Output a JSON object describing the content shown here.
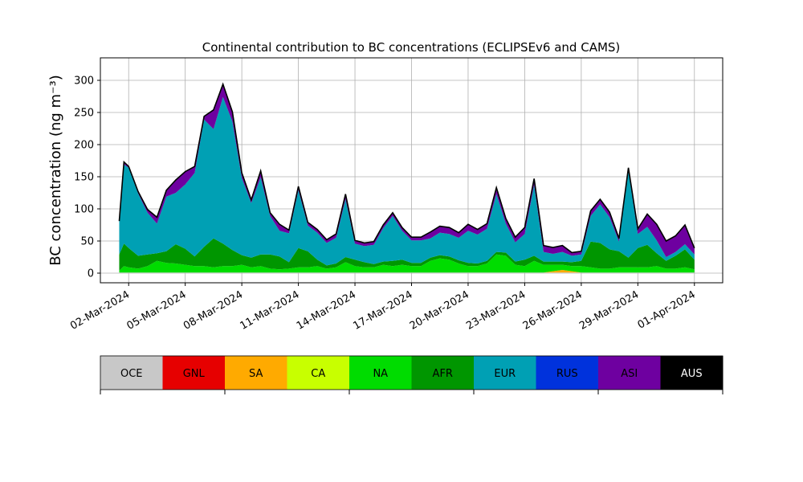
{
  "chart_data": {
    "type": "area",
    "title": "Continental contribution to BC concentrations (ECLIPSEv6 and CAMS)",
    "ylabel": "BC concentration (ng m⁻³)",
    "xlabel": "",
    "ylim": [
      -15,
      335
    ],
    "xlim": [
      "2024-02-29T12:00",
      "2024-04-02T12:00"
    ],
    "yticks": [
      0,
      50,
      100,
      150,
      200,
      250,
      300
    ],
    "xticks": [
      "02-Mar-2024",
      "05-Mar-2024",
      "08-Mar-2024",
      "11-Mar-2024",
      "14-Mar-2024",
      "17-Mar-2024",
      "20-Mar-2024",
      "23-Mar-2024",
      "26-Mar-2024",
      "29-Mar-2024",
      "01-Apr-2024"
    ],
    "grid": true,
    "stacked": true,
    "x": [
      "2024-03-01T12:00",
      "2024-03-01T18:00",
      "2024-03-02T00:00",
      "2024-03-02T12:00",
      "2024-03-03T00:00",
      "2024-03-03T12:00",
      "2024-03-04T00:00",
      "2024-03-04T12:00",
      "2024-03-05T00:00",
      "2024-03-05T12:00",
      "2024-03-06T00:00",
      "2024-03-06T12:00",
      "2024-03-07T00:00",
      "2024-03-07T12:00",
      "2024-03-08T00:00",
      "2024-03-08T12:00",
      "2024-03-09T00:00",
      "2024-03-09T12:00",
      "2024-03-10T00:00",
      "2024-03-10T12:00",
      "2024-03-11T00:00",
      "2024-03-11T12:00",
      "2024-03-12T00:00",
      "2024-03-12T12:00",
      "2024-03-13T00:00",
      "2024-03-13T12:00",
      "2024-03-14T00:00",
      "2024-03-14T12:00",
      "2024-03-15T00:00",
      "2024-03-15T12:00",
      "2024-03-16T00:00",
      "2024-03-16T12:00",
      "2024-03-17T00:00",
      "2024-03-17T12:00",
      "2024-03-18T00:00",
      "2024-03-18T12:00",
      "2024-03-19T00:00",
      "2024-03-19T12:00",
      "2024-03-20T00:00",
      "2024-03-20T12:00",
      "2024-03-21T00:00",
      "2024-03-21T12:00",
      "2024-03-22T00:00",
      "2024-03-22T12:00",
      "2024-03-23T00:00",
      "2024-03-23T12:00",
      "2024-03-24T00:00",
      "2024-03-24T12:00",
      "2024-03-25T00:00",
      "2024-03-25T12:00",
      "2024-03-26T00:00",
      "2024-03-26T12:00",
      "2024-03-27T00:00",
      "2024-03-27T12:00",
      "2024-03-28T00:00",
      "2024-03-28T12:00",
      "2024-03-29T00:00",
      "2024-03-29T12:00",
      "2024-03-30T00:00",
      "2024-03-30T12:00",
      "2024-03-31T00:00",
      "2024-03-31T12:00",
      "2024-04-01T00:00"
    ],
    "series": [
      {
        "name": "OCE",
        "color": "#c8c8c8",
        "values": [
          1,
          1,
          1,
          1,
          1,
          1,
          1,
          1,
          1,
          1,
          1,
          1,
          1,
          1,
          1,
          1,
          1,
          1,
          1,
          1,
          1,
          1,
          1,
          1,
          1,
          1,
          1,
          1,
          1,
          1,
          1,
          1,
          1,
          1,
          1,
          1,
          1,
          1,
          1,
          1,
          1,
          1,
          1,
          1,
          1,
          1,
          1,
          1,
          1,
          1,
          1,
          1,
          1,
          1,
          1,
          1,
          1,
          1,
          1,
          1,
          1,
          1,
          1
        ]
      },
      {
        "name": "GNL",
        "color": "#e60000",
        "values": [
          0,
          0,
          0,
          0,
          0,
          0,
          0,
          0,
          0,
          0,
          0,
          0,
          0,
          0,
          0,
          0,
          0,
          0,
          0,
          0,
          0,
          0,
          0,
          0,
          0,
          0,
          0,
          0,
          0,
          0,
          0,
          0,
          0,
          0,
          0,
          0,
          0,
          0,
          0,
          0,
          0,
          0,
          0,
          0,
          0,
          0,
          0,
          0,
          0,
          0,
          0,
          0,
          0,
          0,
          0,
          0,
          0,
          0,
          0,
          0,
          0,
          0,
          0
        ]
      },
      {
        "name": "SA",
        "color": "#ffaa00",
        "values": [
          0,
          0,
          0,
          0,
          0,
          0,
          0,
          0,
          0,
          0,
          0,
          0,
          0,
          0,
          0,
          0,
          0,
          0,
          0,
          0,
          0,
          0,
          0,
          0,
          0,
          0,
          0,
          0,
          0,
          0,
          0,
          0,
          0,
          0,
          0,
          0,
          0,
          0,
          0,
          0,
          0,
          0,
          0,
          0,
          0,
          0,
          0,
          2,
          4,
          2,
          0,
          0,
          0,
          0,
          0,
          0,
          0,
          0,
          0,
          0,
          0,
          0,
          0
        ]
      },
      {
        "name": "CA",
        "color": "#c8ff00",
        "values": [
          0,
          0,
          0,
          0,
          0,
          0,
          0,
          0,
          0,
          0,
          0,
          0,
          0,
          0,
          0,
          0,
          0,
          0,
          0,
          0,
          0,
          0,
          0,
          0,
          0,
          0,
          0,
          0,
          0,
          0,
          0,
          0,
          0,
          0,
          0,
          0,
          0,
          0,
          0,
          0,
          0,
          0,
          0,
          0,
          0,
          0,
          0,
          0,
          0,
          0,
          0,
          0,
          0,
          0,
          0,
          0,
          0,
          0,
          0,
          0,
          0,
          0,
          0
        ]
      },
      {
        "name": "NA",
        "color": "#00dc00",
        "values": [
          3,
          10,
          8,
          6,
          10,
          18,
          15,
          14,
          12,
          10,
          10,
          8,
          10,
          10,
          12,
          8,
          10,
          6,
          5,
          6,
          8,
          8,
          10,
          6,
          8,
          16,
          10,
          8,
          8,
          12,
          10,
          12,
          10,
          10,
          18,
          22,
          20,
          14,
          10,
          10,
          14,
          28,
          26,
          12,
          10,
          18,
          12,
          10,
          8,
          8,
          10,
          8,
          6,
          6,
          8,
          8,
          8,
          8,
          10,
          6,
          6,
          8,
          5
        ]
      },
      {
        "name": "AFR",
        "color": "#009600",
        "values": [
          25,
          35,
          30,
          20,
          18,
          12,
          18,
          30,
          25,
          15,
          30,
          45,
          35,
          25,
          15,
          15,
          18,
          22,
          20,
          10,
          30,
          25,
          10,
          5,
          6,
          8,
          10,
          8,
          5,
          5,
          8,
          8,
          5,
          5,
          5,
          5,
          5,
          5,
          5,
          4,
          4,
          4,
          5,
          5,
          10,
          8,
          5,
          5,
          5,
          6,
          8,
          40,
          40,
          30,
          25,
          15,
          30,
          35,
          20,
          12,
          20,
          28,
          15
        ]
      },
      {
        "name": "EUR",
        "color": "#00a0b4",
        "values": [
          52,
          123,
          125,
          97,
          65,
          46,
          85,
          80,
          100,
          130,
          198,
          170,
          228,
          200,
          120,
          85,
          120,
          60,
          40,
          45,
          90,
          40,
          42,
          35,
          40,
          90,
          25,
          25,
          30,
          52,
          70,
          45,
          35,
          35,
          30,
          35,
          35,
          35,
          50,
          45,
          50,
          90,
          45,
          30,
          40,
          110,
          15,
          12,
          15,
          10,
          10,
          40,
          60,
          50,
          15,
          135,
          22,
          28,
          20,
          6,
          6,
          8,
          8
        ]
      },
      {
        "name": "RUS",
        "color": "#0032dc",
        "values": [
          0,
          0,
          0,
          0,
          0,
          0,
          0,
          0,
          0,
          0,
          0,
          0,
          0,
          0,
          0,
          0,
          0,
          0,
          0,
          0,
          0,
          0,
          0,
          0,
          0,
          0,
          0,
          0,
          0,
          0,
          0,
          0,
          0,
          0,
          0,
          0,
          0,
          0,
          0,
          0,
          0,
          0,
          0,
          0,
          0,
          0,
          0,
          0,
          0,
          0,
          0,
          0,
          0,
          0,
          0,
          0,
          0,
          0,
          0,
          0,
          0,
          0,
          0
        ]
      },
      {
        "name": "ASI",
        "color": "#6e00a0",
        "values": [
          0,
          4,
          2,
          3,
          5,
          10,
          10,
          20,
          20,
          10,
          5,
          30,
          20,
          15,
          8,
          5,
          10,
          5,
          10,
          5,
          6,
          5,
          5,
          5,
          6,
          8,
          5,
          5,
          5,
          5,
          5,
          5,
          5,
          5,
          10,
          10,
          10,
          8,
          10,
          8,
          8,
          10,
          8,
          8,
          10,
          10,
          10,
          10,
          10,
          5,
          5,
          8,
          8,
          8,
          5,
          5,
          8,
          20,
          25,
          25,
          25,
          30,
          10
        ]
      },
      {
        "name": "AUS",
        "color": "#000000",
        "values": [
          0,
          0,
          0,
          0,
          0,
          0,
          0,
          0,
          0,
          0,
          0,
          0,
          0,
          0,
          0,
          0,
          0,
          0,
          0,
          0,
          0,
          0,
          0,
          0,
          0,
          0,
          0,
          0,
          0,
          0,
          0,
          0,
          0,
          0,
          0,
          0,
          0,
          0,
          0,
          0,
          0,
          0,
          0,
          0,
          0,
          0,
          0,
          0,
          0,
          0,
          0,
          0,
          0,
          0,
          0,
          0,
          0,
          0,
          0,
          0,
          0,
          0,
          0
        ]
      }
    ],
    "legend": {
      "placement": "below",
      "labels": [
        "OCE",
        "GNL",
        "SA",
        "CA",
        "NA",
        "AFR",
        "EUR",
        "RUS",
        "ASI",
        "AUS"
      ]
    }
  }
}
